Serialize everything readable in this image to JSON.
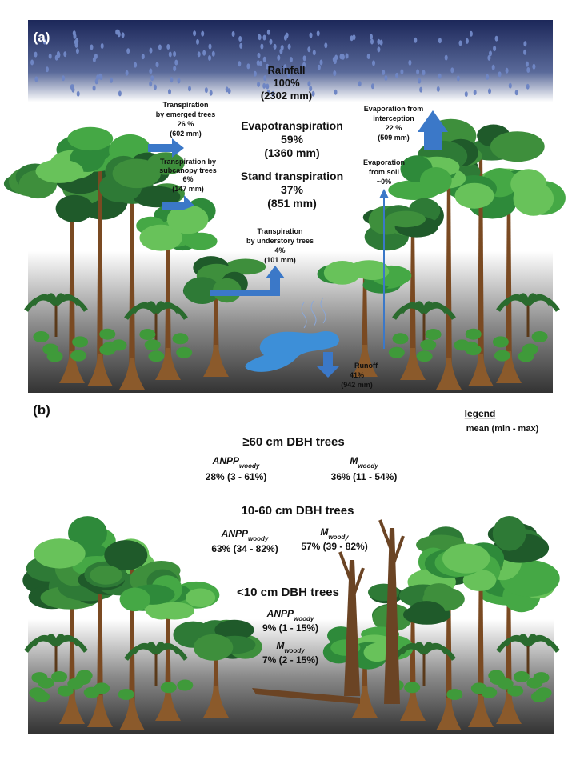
{
  "panel_a": {
    "label": "(a)",
    "rainfall": {
      "name": "Rainfall",
      "share": "100%",
      "amount": "(2302 mm)"
    },
    "evapotranspiration": {
      "name": "Evapotranspiration",
      "share": "59%",
      "amount": "(1360 mm)"
    },
    "stand_transpiration": {
      "name": "Stand transpiration",
      "share": "37%",
      "amount": "(851 mm)"
    },
    "emerged_trees": {
      "name_lines": [
        "Transpiration",
        "by emerged trees"
      ],
      "share": "26 %",
      "amount": "(602 mm)"
    },
    "subcanopy_trees": {
      "name_lines": [
        "Transpiration by",
        "subcanopy trees"
      ],
      "share": "6%",
      "amount": "(147 mm)"
    },
    "understory_trees": {
      "name_lines": [
        "Transpiration",
        "by understory trees"
      ],
      "share": "4%",
      "amount": "(101 mm)"
    },
    "interception": {
      "name_lines": [
        "Evaporation from",
        "interception"
      ],
      "share": "22 %",
      "amount": "(509 mm)"
    },
    "soil": {
      "name_lines": [
        "Evaporation",
        "from soil"
      ],
      "share": "~0%"
    },
    "runoff": {
      "name": "Runoff",
      "share": "41%",
      "amount": "(942 mm)"
    }
  },
  "panel_b": {
    "label": "(b)",
    "legend": {
      "title": "legend",
      "text": "mean (min - max)"
    },
    "groups": [
      {
        "name": "≥60 cm DBH trees",
        "anpp": {
          "name": "ANPP",
          "subscript": "woody",
          "value": "28% (3 - 61%)"
        },
        "mortality": {
          "name": "M",
          "subscript": "woody",
          "value": "36% (11 - 54%)"
        }
      },
      {
        "name": "10-60 cm DBH trees",
        "anpp": {
          "name": "ANPP",
          "subscript": "woody",
          "value": "63% (34 - 82%)"
        },
        "mortality": {
          "name": "M",
          "subscript": "woody",
          "value": "57% (39 - 82%)"
        }
      },
      {
        "name": "<10 cm DBH trees",
        "anpp": {
          "name": "ANPP",
          "subscript": "woody",
          "value": "9% (1 - 15%)"
        },
        "mortality": {
          "name": "M",
          "subscript": "woody",
          "value": "7% (2 - 15%)"
        }
      }
    ]
  }
}
